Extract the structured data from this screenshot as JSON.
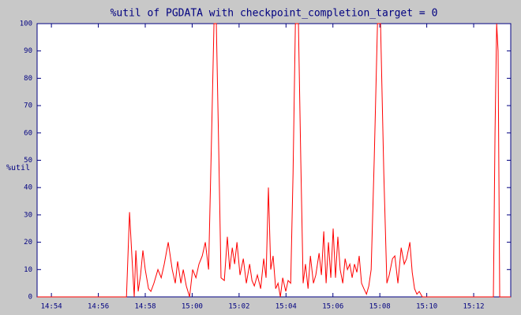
{
  "chart_data": {
    "type": "line",
    "title": "%util of PGDATA with checkpoint_completion_target = 0",
    "ylabel": "%util",
    "xlim": [
      893.39,
      913.58
    ],
    "ylim": [
      0,
      100
    ],
    "xticks": [
      {
        "value": 894,
        "label": "14:54"
      },
      {
        "value": 896,
        "label": "14:56"
      },
      {
        "value": 898,
        "label": "14:58"
      },
      {
        "value": 900,
        "label": "15:00"
      },
      {
        "value": 902,
        "label": "15:02"
      },
      {
        "value": 904,
        "label": "15:04"
      },
      {
        "value": 906,
        "label": "15:06"
      },
      {
        "value": 908,
        "label": "15:08"
      },
      {
        "value": 910,
        "label": "15:10"
      },
      {
        "value": 912,
        "label": "15:12"
      }
    ],
    "yticks": [
      0,
      10,
      20,
      30,
      40,
      50,
      60,
      70,
      80,
      90,
      100
    ],
    "x": [
      893.39,
      897.2,
      897.33,
      897.43,
      897.53,
      897.6,
      897.7,
      897.8,
      897.9,
      898.0,
      898.14,
      898.24,
      898.37,
      898.54,
      898.68,
      898.81,
      898.98,
      899.15,
      899.28,
      899.38,
      899.52,
      899.62,
      899.75,
      899.89,
      900.02,
      900.16,
      900.29,
      900.43,
      900.56,
      900.7,
      900.83,
      900.93,
      901.03,
      901.13,
      901.23,
      901.37,
      901.5,
      901.6,
      901.71,
      901.81,
      901.91,
      902.04,
      902.18,
      902.31,
      902.45,
      902.55,
      902.65,
      902.78,
      902.92,
      903.05,
      903.15,
      903.25,
      903.35,
      903.45,
      903.56,
      903.66,
      903.76,
      903.86,
      903.99,
      904.09,
      904.2,
      904.3,
      904.4,
      904.53,
      904.63,
      904.73,
      904.83,
      904.94,
      905.04,
      905.17,
      905.27,
      905.41,
      905.51,
      905.61,
      905.71,
      905.81,
      905.91,
      906.01,
      906.11,
      906.21,
      906.31,
      906.42,
      906.52,
      906.62,
      906.72,
      906.82,
      906.92,
      907.02,
      907.12,
      907.22,
      907.32,
      907.43,
      907.53,
      907.63,
      907.76,
      907.9,
      908.03,
      908.17,
      908.3,
      908.4,
      908.54,
      908.64,
      908.77,
      908.91,
      909.04,
      909.14,
      909.28,
      909.38,
      909.48,
      909.58,
      909.68,
      909.81,
      912.84,
      912.91,
      912.98,
      913.04,
      913.11,
      913.58
    ],
    "series": [
      {
        "name": "%util",
        "color": "#ff0000",
        "values": [
          0,
          0,
          31,
          15,
          0,
          17,
          2,
          8,
          17,
          10,
          3,
          2,
          5,
          10,
          7,
          12,
          20,
          10,
          5,
          13,
          5,
          10,
          4,
          0,
          10,
          7,
          12,
          15,
          20,
          10,
          60,
          100,
          100,
          55,
          7,
          6,
          22,
          10,
          18,
          12,
          20,
          8,
          14,
          5,
          12,
          6,
          4,
          8,
          3,
          14,
          7,
          40,
          10,
          15,
          3,
          5,
          0,
          7,
          2,
          6,
          5,
          45,
          100,
          100,
          50,
          5,
          12,
          3,
          15,
          5,
          8,
          16,
          8,
          24,
          5,
          20,
          7,
          25,
          7,
          22,
          10,
          5,
          14,
          10,
          12,
          7,
          12,
          9,
          15,
          5,
          3,
          1,
          4,
          10,
          50,
          100,
          100,
          45,
          5,
          8,
          14,
          15,
          5,
          18,
          12,
          14,
          20,
          9,
          3,
          1,
          2,
          0,
          0,
          60,
          100,
          90,
          0,
          0
        ]
      }
    ]
  }
}
